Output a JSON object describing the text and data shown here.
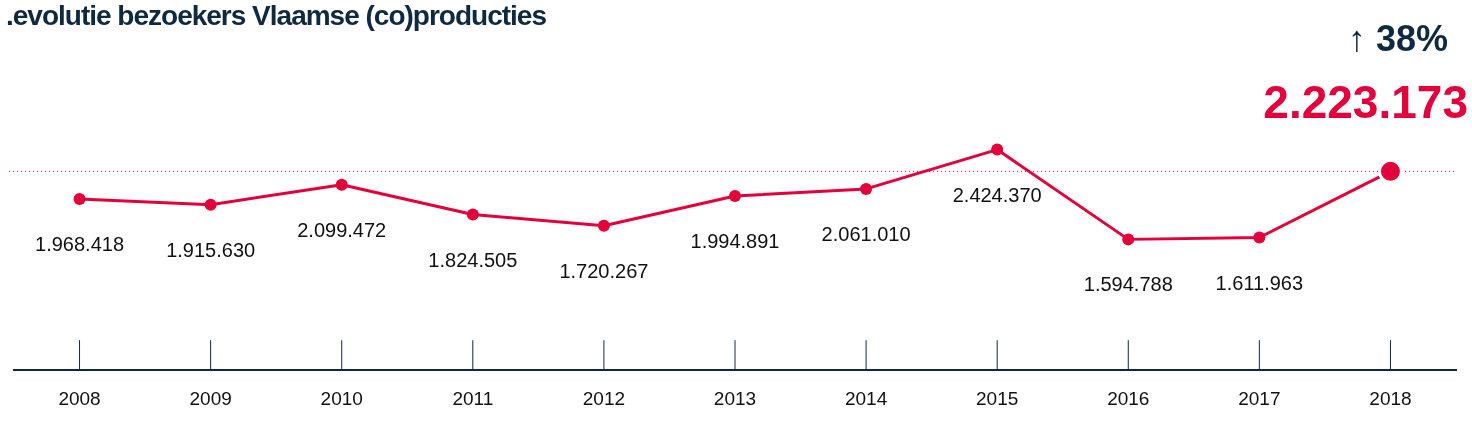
{
  "chart_data": {
    "type": "line",
    "title": ".evolutie bezoekers Vlaamse (co)producties",
    "categories": [
      "2008",
      "2009",
      "2010",
      "2011",
      "2012",
      "2013",
      "2014",
      "2015",
      "2016",
      "2017",
      "2018"
    ],
    "values": [
      1968418,
      1915630,
      2099472,
      1824505,
      1720267,
      1994891,
      2061010,
      2424370,
      1594788,
      1611963,
      2223173
    ],
    "value_labels": [
      "1.968.418",
      "1.915.630",
      "2.099.472",
      "1.824.505",
      "1.720.267",
      "1.994.891",
      "2.061.010",
      "2.424.370",
      "1.594.788",
      "1.611.963",
      "2.223.173"
    ],
    "color": "#e4003b",
    "marker": "circle",
    "grid": false,
    "legend": false,
    "ref_lines": [
      {
        "axis": "y",
        "value": 2223173,
        "color": "#e4003b",
        "line_style": "dotted"
      }
    ],
    "annotations": [
      "↑ 38%"
    ]
  }
}
